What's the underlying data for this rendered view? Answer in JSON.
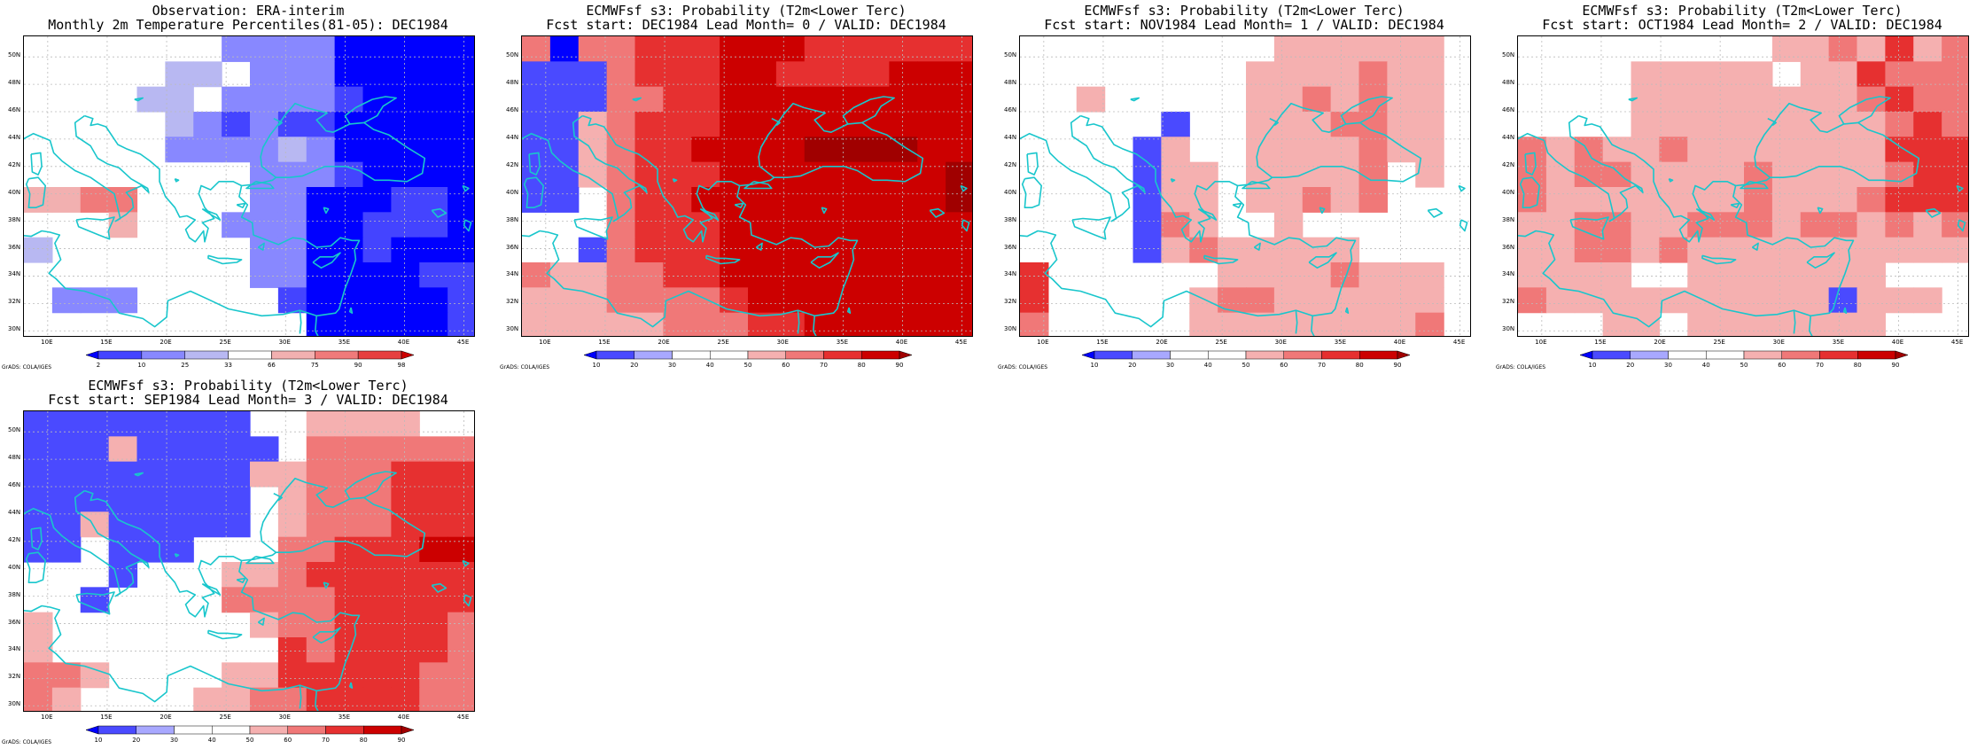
{
  "colors": {
    "obs": [
      "#0000ff",
      "#4444ff",
      "#8888ff",
      "#b8b8f2",
      "#ffffff",
      "#f2b0b0",
      "#f07a7a",
      "#e64040",
      "#cc0000"
    ],
    "prob": [
      "#0000ff",
      "#4a4aff",
      "#a8a8ff",
      "#ffffff",
      "#ffffff",
      "#f5b0b0",
      "#f07878",
      "#e63030",
      "#cc0000",
      "#a00000"
    ],
    "coast": "#19c6cc"
  },
  "lat_labels": [
    "30N",
    "32N",
    "34N",
    "36N",
    "38N",
    "40N",
    "42N",
    "44N",
    "46N",
    "48N",
    "50N"
  ],
  "lon_labels": [
    "10E",
    "15E",
    "20E",
    "25E",
    "30E",
    "35E",
    "40E",
    "45E"
  ],
  "obs_colorbar_labels": [
    "2",
    "10",
    "25",
    "33",
    "66",
    "75",
    "90",
    "98"
  ],
  "prob_colorbar_labels": [
    "10",
    "20",
    "30",
    "40",
    "50",
    "60",
    "70",
    "80",
    "90"
  ],
  "credit": "GrADS: COLA/IGES",
  "panels": [
    {
      "id": "obs",
      "title1": "Observation: ERA-interim",
      "title2": "Monthly 2m Temperature Percentiles(81-05): DEC1984",
      "scale": "obs",
      "grid": [
        "4444444222200000",
        "4444433422200000",
        "4444334222210000",
        "4444432121100000",
        "4444422223200000",
        "4444444422210000",
        "5566444422000110",
        "4445444222001110",
        "3444444422001000",
        "4444444422000011",
        "4222444441000001",
        "4444444444000001"
      ]
    },
    {
      "id": "lead0",
      "title1": "ECMWFsf s3: Probability (T2m<Lower Terc)",
      "title2": "Fcst start: DEC1984  Lead Month= 0 / VALID: DEC1984",
      "scale": "prob",
      "grid": [
        "6066777888777777",
        "1116777887777888",
        "1116677888888888",
        "1156777888888888",
        "1156778888999988",
        "1156777888888889",
        "1136778888888889",
        "3336777888888888",
        "3316777888888888",
        "6556677888888888",
        "5556666788888888",
        "5555566677888888"
      ]
    },
    {
      "id": "lead1",
      "title1": "ECMWFsf s3: Probability (T2m<Lower Terc)",
      "title2": "Fcst start: NOV1984  Lead Month= 1 / VALID: DEC1984",
      "scale": "prob",
      "grid": [
        "4444444445555554",
        "4444444455556554",
        "4454444455656554",
        "4444414455566554",
        "4444154455556554",
        "4444155455556454",
        "4444155455656444",
        "4444165445444444",
        "4444156555554444",
        "7444444555565554",
        "7444445665555554",
        "6444445555555564"
      ]
    },
    {
      "id": "lead2",
      "title1": "ECMWFsf s3: Probability (T2m<Lower Terc)",
      "title2": "Fcst start: OCT1984  Lead Month= 2 / VALID: DEC1984",
      "scale": "prob",
      "grid": [
        "4444444445565756",
        "4444555554557666",
        "4444555555556766",
        "4444555555555676",
        "6565565555555777",
        "6566555565555677",
        "6555555565556777",
        "5566556665665656",
        "5566565555555555",
        "5555445555555444",
        "6555555555515554",
        "4445545555555444"
      ]
    },
    {
      "id": "lead3",
      "title1": "ECMWFsf s3: Probability (T2m<Lower Terc)",
      "title2": "Fcst start: SEP1984  Lead Month= 3 / VALID: DEC1984",
      "scale": "prob",
      "grid": [
        "1111111144555544",
        "1115111114666666",
        "1111111155666777",
        "1111111145666777",
        "1151111145666777",
        "1141114446677788",
        "4441444556777777",
        "4414444666677777",
        "5444444456677776",
        "5444444447677776",
        "6654444557777766",
        "6544445566777766"
      ]
    }
  ]
}
